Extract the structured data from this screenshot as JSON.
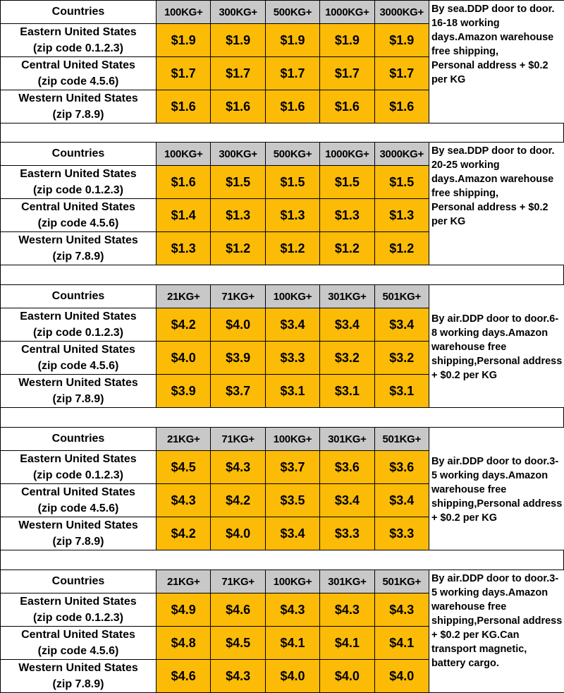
{
  "colors": {
    "header_gray": "#c8c8c8",
    "price_yellow": "#fbbb06",
    "border": "#000000"
  },
  "blocks": [
    {
      "header": {
        "countries_label": "Countries",
        "weights": [
          "100KG+",
          "300KG+",
          "500KG+",
          "1000KG+",
          "3000KG+"
        ]
      },
      "rows": [
        {
          "region": "Eastern United States",
          "zip": "(zip code 0.1.2.3)",
          "prices": [
            "$1.9",
            "$1.9",
            "$1.9",
            "$1.9",
            "$1.9"
          ]
        },
        {
          "region": "Central United States",
          "zip": "(zip code 4.5.6)",
          "prices": [
            "$1.7",
            "$1.7",
            "$1.7",
            "$1.7",
            "$1.7"
          ]
        },
        {
          "region": "Western United States",
          "zip": "(zip 7.8.9)",
          "prices": [
            "$1.6",
            "$1.6",
            "$1.6",
            "$1.6",
            "$1.6"
          ]
        }
      ],
      "note": "By sea.DDP door to door.\n16-18 working days.Amazon warehouse free shipping,\nPersonal address + $0.2 per KG"
    },
    {
      "header": {
        "countries_label": "Countries",
        "weights": [
          "100KG+",
          "300KG+",
          "500KG+",
          "1000KG+",
          "3000KG+"
        ]
      },
      "rows": [
        {
          "region": "Eastern United States",
          "zip": "(zip code 0.1.2.3)",
          "prices": [
            "$1.6",
            "$1.5",
            "$1.5",
            "$1.5",
            "$1.5"
          ]
        },
        {
          "region": "Central United States",
          "zip": "(zip code 4.5.6)",
          "prices": [
            "$1.4",
            "$1.3",
            "$1.3",
            "$1.3",
            "$1.3"
          ]
        },
        {
          "region": "Western United States",
          "zip": "(zip 7.8.9)",
          "prices": [
            "$1.3",
            "$1.2",
            "$1.2",
            "$1.2",
            "$1.2"
          ]
        }
      ],
      "note": "By sea.DDP door to door.\n20-25 working days.Amazon warehouse free shipping,\nPersonal address + $0.2 per KG"
    },
    {
      "header": {
        "countries_label": "Countries",
        "weights": [
          "21KG+",
          "71KG+",
          "100KG+",
          "301KG+",
          "501KG+"
        ]
      },
      "rows": [
        {
          "region": "Eastern United States",
          "zip": "(zip code 0.1.2.3)",
          "prices": [
            "$4.2",
            "$4.0",
            "$3.4",
            "$3.4",
            "$3.4"
          ]
        },
        {
          "region": "Central United States",
          "zip": "(zip code 4.5.6)",
          "prices": [
            "$4.0",
            "$3.9",
            "$3.3",
            "$3.2",
            "$3.2"
          ]
        },
        {
          "region": "Western United States",
          "zip": "(zip 7.8.9)",
          "prices": [
            "$3.9",
            "$3.7",
            "$3.1",
            "$3.1",
            "$3.1"
          ]
        }
      ],
      "note": "By air.DDP door to door.6-8 working days.Amazon warehouse free shipping,Personal address + $0.2 per KG"
    },
    {
      "header": {
        "countries_label": "Countries",
        "weights": [
          "21KG+",
          "71KG+",
          "100KG+",
          "301KG+",
          "501KG+"
        ]
      },
      "rows": [
        {
          "region": "Eastern United States",
          "zip": "(zip code 0.1.2.3)",
          "prices": [
            "$4.5",
            "$4.3",
            "$3.7",
            "$3.6",
            "$3.6"
          ]
        },
        {
          "region": "Central United States",
          "zip": "(zip code 4.5.6)",
          "prices": [
            "$4.3",
            "$4.2",
            "$3.5",
            "$3.4",
            "$3.4"
          ]
        },
        {
          "region": "Western United States",
          "zip": "(zip 7.8.9)",
          "prices": [
            "$4.2",
            "$4.0",
            "$3.4",
            "$3.3",
            "$3.3"
          ]
        }
      ],
      "note": "By air.DDP door to door.3-5 working days.Amazon warehouse free shipping,Personal address + $0.2 per KG"
    },
    {
      "header": {
        "countries_label": "Countries",
        "weights": [
          "21KG+",
          "71KG+",
          "100KG+",
          "301KG+",
          "501KG+"
        ]
      },
      "rows": [
        {
          "region": "Eastern United States",
          "zip": "(zip code 0.1.2.3)",
          "prices": [
            "$4.9",
            "$4.6",
            "$4.3",
            "$4.3",
            "$4.3"
          ]
        },
        {
          "region": "Central United States",
          "zip": "(zip code 4.5.6)",
          "prices": [
            "$4.8",
            "$4.5",
            "$4.1",
            "$4.1",
            "$4.1"
          ]
        },
        {
          "region": "Western United States",
          "zip": "(zip 7.8.9)",
          "prices": [
            "$4.6",
            "$4.3",
            "$4.0",
            "$4.0",
            "$4.0"
          ]
        }
      ],
      "note": "By air.DDP door to door.3-5 working days.Amazon warehouse free shipping,Personal address + $0.2 per KG.Can transport magnetic, battery cargo."
    }
  ]
}
